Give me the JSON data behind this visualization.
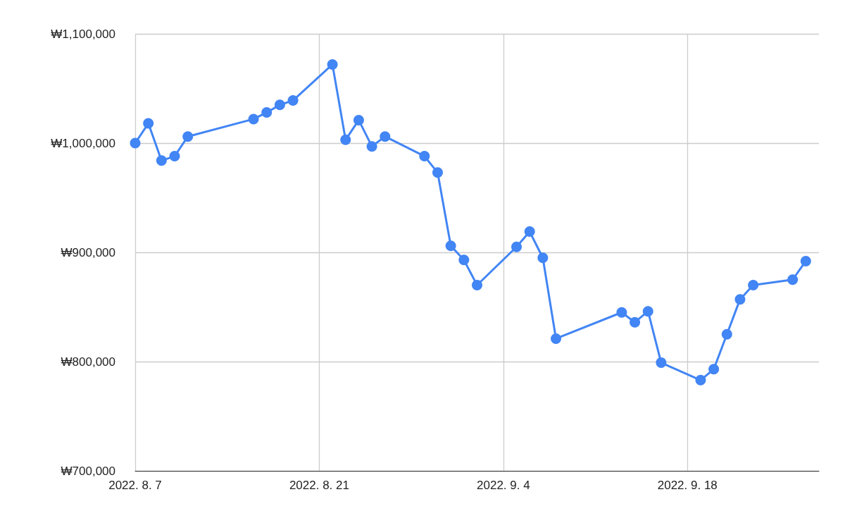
{
  "chart_data": {
    "type": "line",
    "x": [
      "2022-08-07",
      "2022-08-08",
      "2022-08-09",
      "2022-08-10",
      "2022-08-11",
      "2022-08-16",
      "2022-08-17",
      "2022-08-18",
      "2022-08-19",
      "2022-08-22",
      "2022-08-23",
      "2022-08-24",
      "2022-08-25",
      "2022-08-26",
      "2022-08-29",
      "2022-08-30",
      "2022-08-31",
      "2022-09-01",
      "2022-09-02",
      "2022-09-05",
      "2022-09-06",
      "2022-09-07",
      "2022-09-08",
      "2022-09-13",
      "2022-09-14",
      "2022-09-15",
      "2022-09-16",
      "2022-09-19",
      "2022-09-20",
      "2022-09-21",
      "2022-09-22",
      "2022-09-23",
      "2022-09-26",
      "2022-09-27"
    ],
    "series": [
      {
        "color": "#4285f4",
        "values": [
          1000000,
          1018000,
          984000,
          988000,
          1006000,
          1022000,
          1028000,
          1035000,
          1039000,
          1072000,
          1003000,
          1021000,
          997000,
          1006000,
          988000,
          973000,
          906000,
          893000,
          870000,
          905000,
          919000,
          895000,
          821000,
          845000,
          836000,
          846000,
          799000,
          783000,
          793000,
          825000,
          857000,
          870000,
          875000,
          892000
        ]
      }
    ],
    "xlim": [
      "2022-08-07",
      "2022-09-28"
    ],
    "xticks": [
      {
        "value": "2022-08-07",
        "label": "2022. 8. 7"
      },
      {
        "value": "2022-08-21",
        "label": "2022. 8. 21"
      },
      {
        "value": "2022-09-04",
        "label": "2022. 9. 4"
      },
      {
        "value": "2022-09-18",
        "label": "2022. 9. 18"
      }
    ],
    "ylim": [
      700000,
      1100000
    ],
    "yticks": [
      {
        "value": 700000,
        "label": "₩700,000"
      },
      {
        "value": 800000,
        "label": "₩800,000"
      },
      {
        "value": 900000,
        "label": "₩900,000"
      },
      {
        "value": 1000000,
        "label": "₩1,000,000"
      },
      {
        "value": 1100000,
        "label": "₩1,100,000"
      }
    ],
    "grid": true,
    "marker": "circle",
    "line_style": "solid"
  }
}
